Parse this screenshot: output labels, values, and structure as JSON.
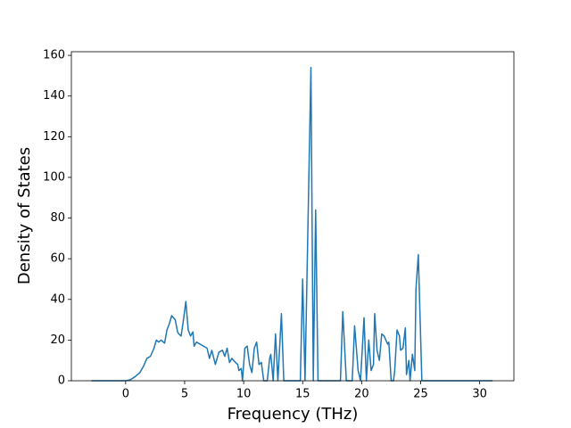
{
  "chart_data": {
    "type": "line",
    "x_label": "Frequency (THz)",
    "y_label": "Density of States",
    "x": [
      -2.9,
      0,
      0.4,
      0.8,
      1.2,
      1.5,
      1.8,
      2.1,
      2.4,
      2.6,
      2.8,
      3.0,
      3.3,
      3.5,
      3.7,
      3.9,
      4.2,
      4.4,
      4.5,
      4.7,
      4.9,
      5.1,
      5.3,
      5.5,
      5.7,
      5.8,
      6.0,
      6.3,
      6.6,
      6.9,
      7.1,
      7.3,
      7.6,
      7.9,
      8.2,
      8.4,
      8.6,
      8.8,
      9.0,
      9.3,
      9.5,
      9.6,
      9.8,
      9.9,
      10.1,
      10.3,
      10.5,
      10.7,
      10.9,
      11.1,
      11.3,
      11.5,
      11.7,
      12.0,
      12.2,
      12.3,
      12.5,
      12.7,
      12.9,
      13.2,
      13.4,
      14.8,
      15.0,
      15.2,
      15.7,
      15.9,
      16.1,
      16.3,
      18.2,
      18.4,
      18.7,
      19.2,
      19.4,
      19.7,
      19.9,
      20.2,
      20.4,
      20.6,
      20.8,
      21.0,
      21.1,
      21.3,
      21.5,
      21.7,
      21.9,
      22.2,
      22.3,
      22.5,
      22.7,
      22.8,
      23.0,
      23.2,
      23.3,
      23.5,
      23.7,
      23.8,
      24.0,
      24.1,
      24.3,
      24.5,
      24.6,
      24.8,
      25.1,
      31.1
    ],
    "series": [
      {
        "color": "#1f77b4",
        "values": [
          0,
          0,
          0.5,
          2,
          4,
          7,
          11,
          12,
          16,
          20,
          19,
          20,
          18.5,
          25,
          28,
          32,
          30,
          24,
          23,
          22,
          30,
          39,
          25,
          22,
          24,
          17,
          19,
          18,
          17,
          16,
          11,
          15,
          8,
          14,
          15,
          12,
          16,
          9,
          11,
          9,
          8,
          5,
          6,
          0,
          16,
          17,
          8,
          4,
          16,
          19,
          8,
          9,
          0,
          0,
          11,
          13,
          0,
          23,
          0,
          33,
          0,
          0,
          50,
          0,
          154,
          0,
          84,
          0,
          0,
          34,
          0,
          0,
          27,
          5,
          0,
          31,
          0,
          20,
          5,
          8,
          33,
          15,
          10,
          23,
          22,
          18,
          19,
          0,
          0,
          5,
          25,
          22,
          15,
          16,
          26,
          3,
          10,
          0,
          13,
          5,
          45,
          62,
          0,
          0
        ]
      }
    ],
    "xlim": [
      -4.6,
      32.9
    ],
    "ylim": [
      0,
      161.8
    ],
    "xticks": [
      0,
      5,
      10,
      15,
      20,
      25,
      30
    ],
    "yticks": [
      0,
      20,
      40,
      60,
      80,
      100,
      120,
      140,
      160
    ]
  }
}
